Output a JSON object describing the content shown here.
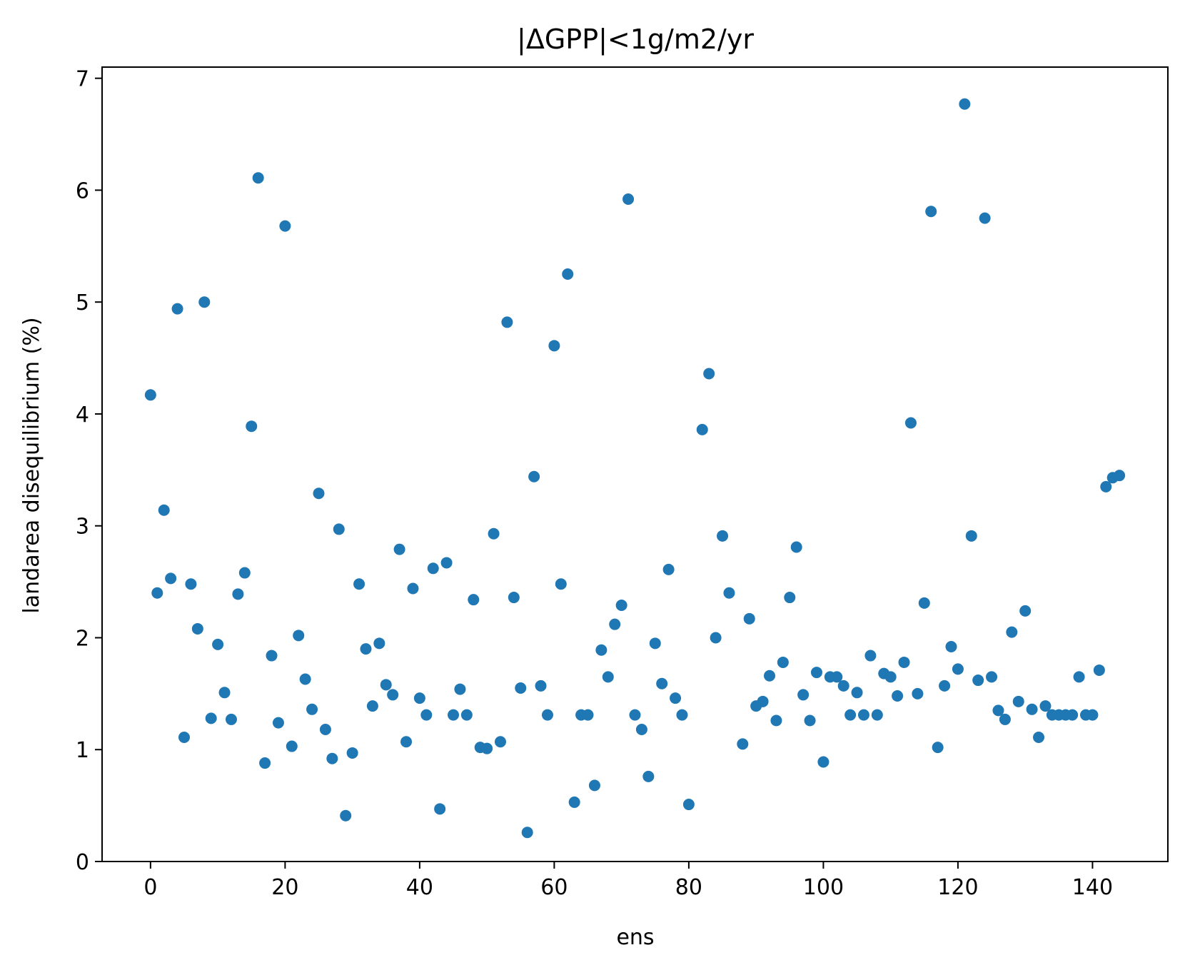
{
  "chart_data": {
    "type": "scatter",
    "title": "|ΔGPP|<1g/m2/yr",
    "xlabel": "ens",
    "ylabel": "landarea disequilibrium (%)",
    "xlim": [
      -7.2,
      151.2
    ],
    "ylim": [
      0,
      7.1
    ],
    "xticks": [
      0,
      20,
      40,
      60,
      80,
      100,
      120,
      140
    ],
    "yticks": [
      0,
      1,
      2,
      3,
      4,
      5,
      6,
      7
    ],
    "grid": false,
    "point_color": "#1f77b4",
    "series": [
      {
        "x": [
          0,
          1,
          2,
          3,
          4,
          5,
          6,
          7,
          8,
          9,
          10,
          11,
          12,
          13,
          14,
          15,
          16,
          17,
          18,
          19,
          20,
          21,
          22,
          23,
          24,
          25,
          26,
          27,
          28,
          29,
          30,
          31,
          32,
          33,
          34,
          35,
          36,
          37,
          38,
          39,
          40,
          41,
          42,
          43,
          44,
          45,
          46,
          47,
          48,
          49,
          50,
          51,
          52,
          53,
          54,
          55,
          56,
          57,
          58,
          59,
          60,
          61,
          62,
          63,
          64,
          65,
          66,
          67,
          68,
          69,
          70,
          71,
          72,
          73,
          74,
          75,
          76,
          77,
          78,
          79,
          80,
          81,
          82,
          83,
          84,
          85,
          86,
          87,
          88,
          89,
          90,
          91,
          92,
          93,
          94,
          95,
          96,
          97,
          98,
          99,
          100,
          101,
          102,
          103,
          104,
          105,
          106,
          107,
          108,
          109,
          110,
          111,
          112,
          113,
          114,
          115,
          116,
          117,
          118,
          119,
          120,
          121,
          122,
          123,
          124,
          125,
          126,
          127,
          128,
          129,
          130,
          131,
          132,
          133,
          134,
          135,
          136,
          137,
          138,
          139,
          140,
          141,
          142,
          143,
          144
        ],
        "y": [
          4.17,
          2.4,
          3.14,
          2.53,
          4.94,
          1.11,
          2.48,
          2.08,
          5.0,
          1.28,
          1.94,
          1.51,
          1.27,
          2.39,
          2.58,
          3.89,
          6.11,
          0.88,
          1.84,
          1.24,
          5.68,
          1.03,
          2.02,
          1.63,
          1.36,
          3.29,
          1.18,
          0.92,
          2.97,
          0.41,
          0.97,
          2.48,
          1.9,
          1.39,
          1.95,
          1.58,
          1.49,
          2.79,
          1.07,
          2.44,
          1.46,
          1.31,
          2.62,
          0.47,
          2.67,
          1.31,
          1.54,
          1.31,
          2.34,
          1.02,
          1.01,
          2.93,
          1.07,
          4.82,
          2.36,
          1.55,
          0.26,
          3.44,
          1.57,
          1.31,
          4.61,
          2.48,
          5.25,
          0.53,
          1.31,
          1.31,
          0.68,
          1.89,
          1.65,
          2.12,
          2.29,
          5.92,
          1.31,
          1.18,
          0.76,
          1.95,
          1.59,
          2.61,
          1.46,
          1.31,
          0.51,
          null,
          3.86,
          4.36,
          2.0,
          2.91,
          2.4,
          null,
          1.05,
          2.17,
          1.39,
          1.43,
          1.66,
          1.26,
          1.78,
          2.36,
          2.81,
          1.49,
          1.26,
          1.69,
          0.89,
          1.65,
          1.65,
          1.57,
          1.31,
          1.51,
          1.31,
          1.84,
          1.31,
          1.68,
          1.65,
          1.48,
          1.78,
          3.92,
          1.5,
          2.31,
          5.81,
          1.02,
          1.57,
          1.92,
          1.72,
          6.77,
          2.91,
          1.62,
          5.75,
          1.65,
          1.35,
          1.27,
          2.05,
          1.43,
          2.24,
          1.36,
          1.11,
          1.39,
          1.31,
          1.31,
          1.31,
          1.31,
          1.65,
          1.31,
          1.31,
          1.71,
          3.35,
          3.43,
          3.45
        ]
      }
    ]
  }
}
